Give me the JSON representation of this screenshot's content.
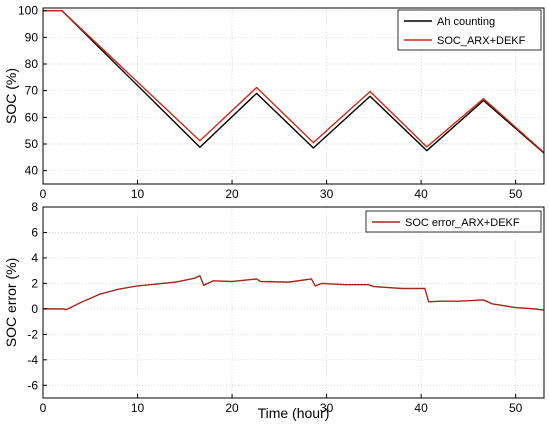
{
  "chart_data": [
    {
      "type": "line",
      "title": "",
      "xlabel": "",
      "ylabel": "SOC (%)",
      "xlim": [
        0,
        53
      ],
      "ylim": [
        35,
        101
      ],
      "x_ticks": [
        0,
        10,
        20,
        30,
        40,
        50
      ],
      "y_ticks": [
        40,
        50,
        60,
        70,
        80,
        90,
        100
      ],
      "grid": true,
      "legend_position": "top-right",
      "series": [
        {
          "name": "Ah counting",
          "color": "#000000",
          "x": [
            0,
            2,
            16.6,
            22.6,
            28.6,
            34.6,
            40.6,
            46.6,
            53
          ],
          "y": [
            100,
            100,
            48.8,
            69.0,
            48.5,
            67.9,
            47.5,
            66.3,
            46.6
          ]
        },
        {
          "name": "SOC_ARX+DEKF",
          "color": "#cc2a1a",
          "x": [
            0,
            2,
            16.6,
            22.6,
            28.6,
            34.6,
            40.6,
            46.6,
            53
          ],
          "y": [
            100,
            100,
            51.2,
            71.2,
            50.5,
            69.7,
            48.9,
            67.0,
            46.8
          ]
        }
      ]
    },
    {
      "type": "line",
      "title": "",
      "xlabel": "Time (hour)",
      "ylabel": "SOC error (%)",
      "xlim": [
        0,
        53
      ],
      "ylim": [
        -7,
        8
      ],
      "x_ticks": [
        0,
        10,
        20,
        30,
        40,
        50
      ],
      "y_ticks": [
        -6,
        -4,
        -2,
        0,
        2,
        4,
        6,
        8
      ],
      "grid": true,
      "legend_position": "top-right",
      "series": [
        {
          "name": "SOC error_ARX+DEKF",
          "color": "#a3281a",
          "x": [
            0,
            2,
            2.5,
            4,
            6,
            8,
            10,
            12,
            14,
            16,
            16.6,
            17,
            18,
            20,
            22,
            22.6,
            23,
            26,
            28.4,
            28.8,
            29.5,
            32,
            34.4,
            35,
            38,
            40.4,
            40.8,
            42,
            44,
            46.6,
            47.5,
            50,
            52,
            53
          ],
          "y": [
            0,
            0,
            -0.05,
            0.5,
            1.15,
            1.55,
            1.8,
            1.95,
            2.1,
            2.4,
            2.6,
            1.85,
            2.2,
            2.15,
            2.3,
            2.35,
            2.15,
            2.1,
            2.35,
            1.8,
            2.0,
            1.9,
            1.9,
            1.75,
            1.6,
            1.6,
            0.55,
            0.6,
            0.6,
            0.7,
            0.4,
            0.1,
            0.0,
            -0.1
          ]
        }
      ]
    }
  ]
}
